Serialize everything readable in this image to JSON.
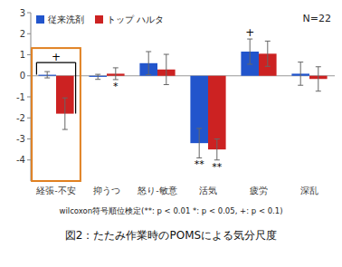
{
  "chart_data": {
    "type": "bar",
    "title": "図2：たたみ作業時のPOMSによる気分尺度",
    "footnote": "wilcoxon符号順位検定(**: p < 0.01 *: p < 0.05, +: p < 0.1)",
    "categories": [
      "経張-不安",
      "抑うつ",
      "怒り-敏意",
      "活気",
      "疲労",
      "深乱"
    ],
    "series": [
      {
        "name": "従来洗剤",
        "color": "#2255cc",
        "values": [
          0.05,
          -0.05,
          0.6,
          -3.2,
          1.15,
          0.1
        ],
        "errors": [
          0.15,
          0.12,
          0.55,
          0.7,
          0.6,
          0.55
        ]
      },
      {
        "name": "トップ ハルタ",
        "color": "#cc2222",
        "values": [
          -1.8,
          0.1,
          0.3,
          -3.5,
          1.05,
          -0.15
        ],
        "errors": [
          0.75,
          0.28,
          0.72,
          0.5,
          0.6,
          0.58
        ]
      }
    ],
    "ylim": [
      -5,
      3
    ],
    "yticks": [
      -4,
      -3,
      -2,
      -1,
      0,
      1,
      2,
      3
    ],
    "grid": false,
    "legend": "upper-left",
    "highlight": {
      "category": 0,
      "color": "#e08020"
    },
    "annotations": [
      {
        "text": "+",
        "category": 0
      },
      {
        "text": "*",
        "category": 1,
        "series": 1,
        "position": "below"
      },
      {
        "text": "**",
        "category": 3,
        "series": 0,
        "position": "below"
      },
      {
        "text": "**",
        "category": 3,
        "series": 1,
        "position": "below"
      },
      {
        "text": "+",
        "category": 4,
        "series": 0,
        "position": "above"
      },
      {
        "text": "N=22"
      }
    ]
  }
}
